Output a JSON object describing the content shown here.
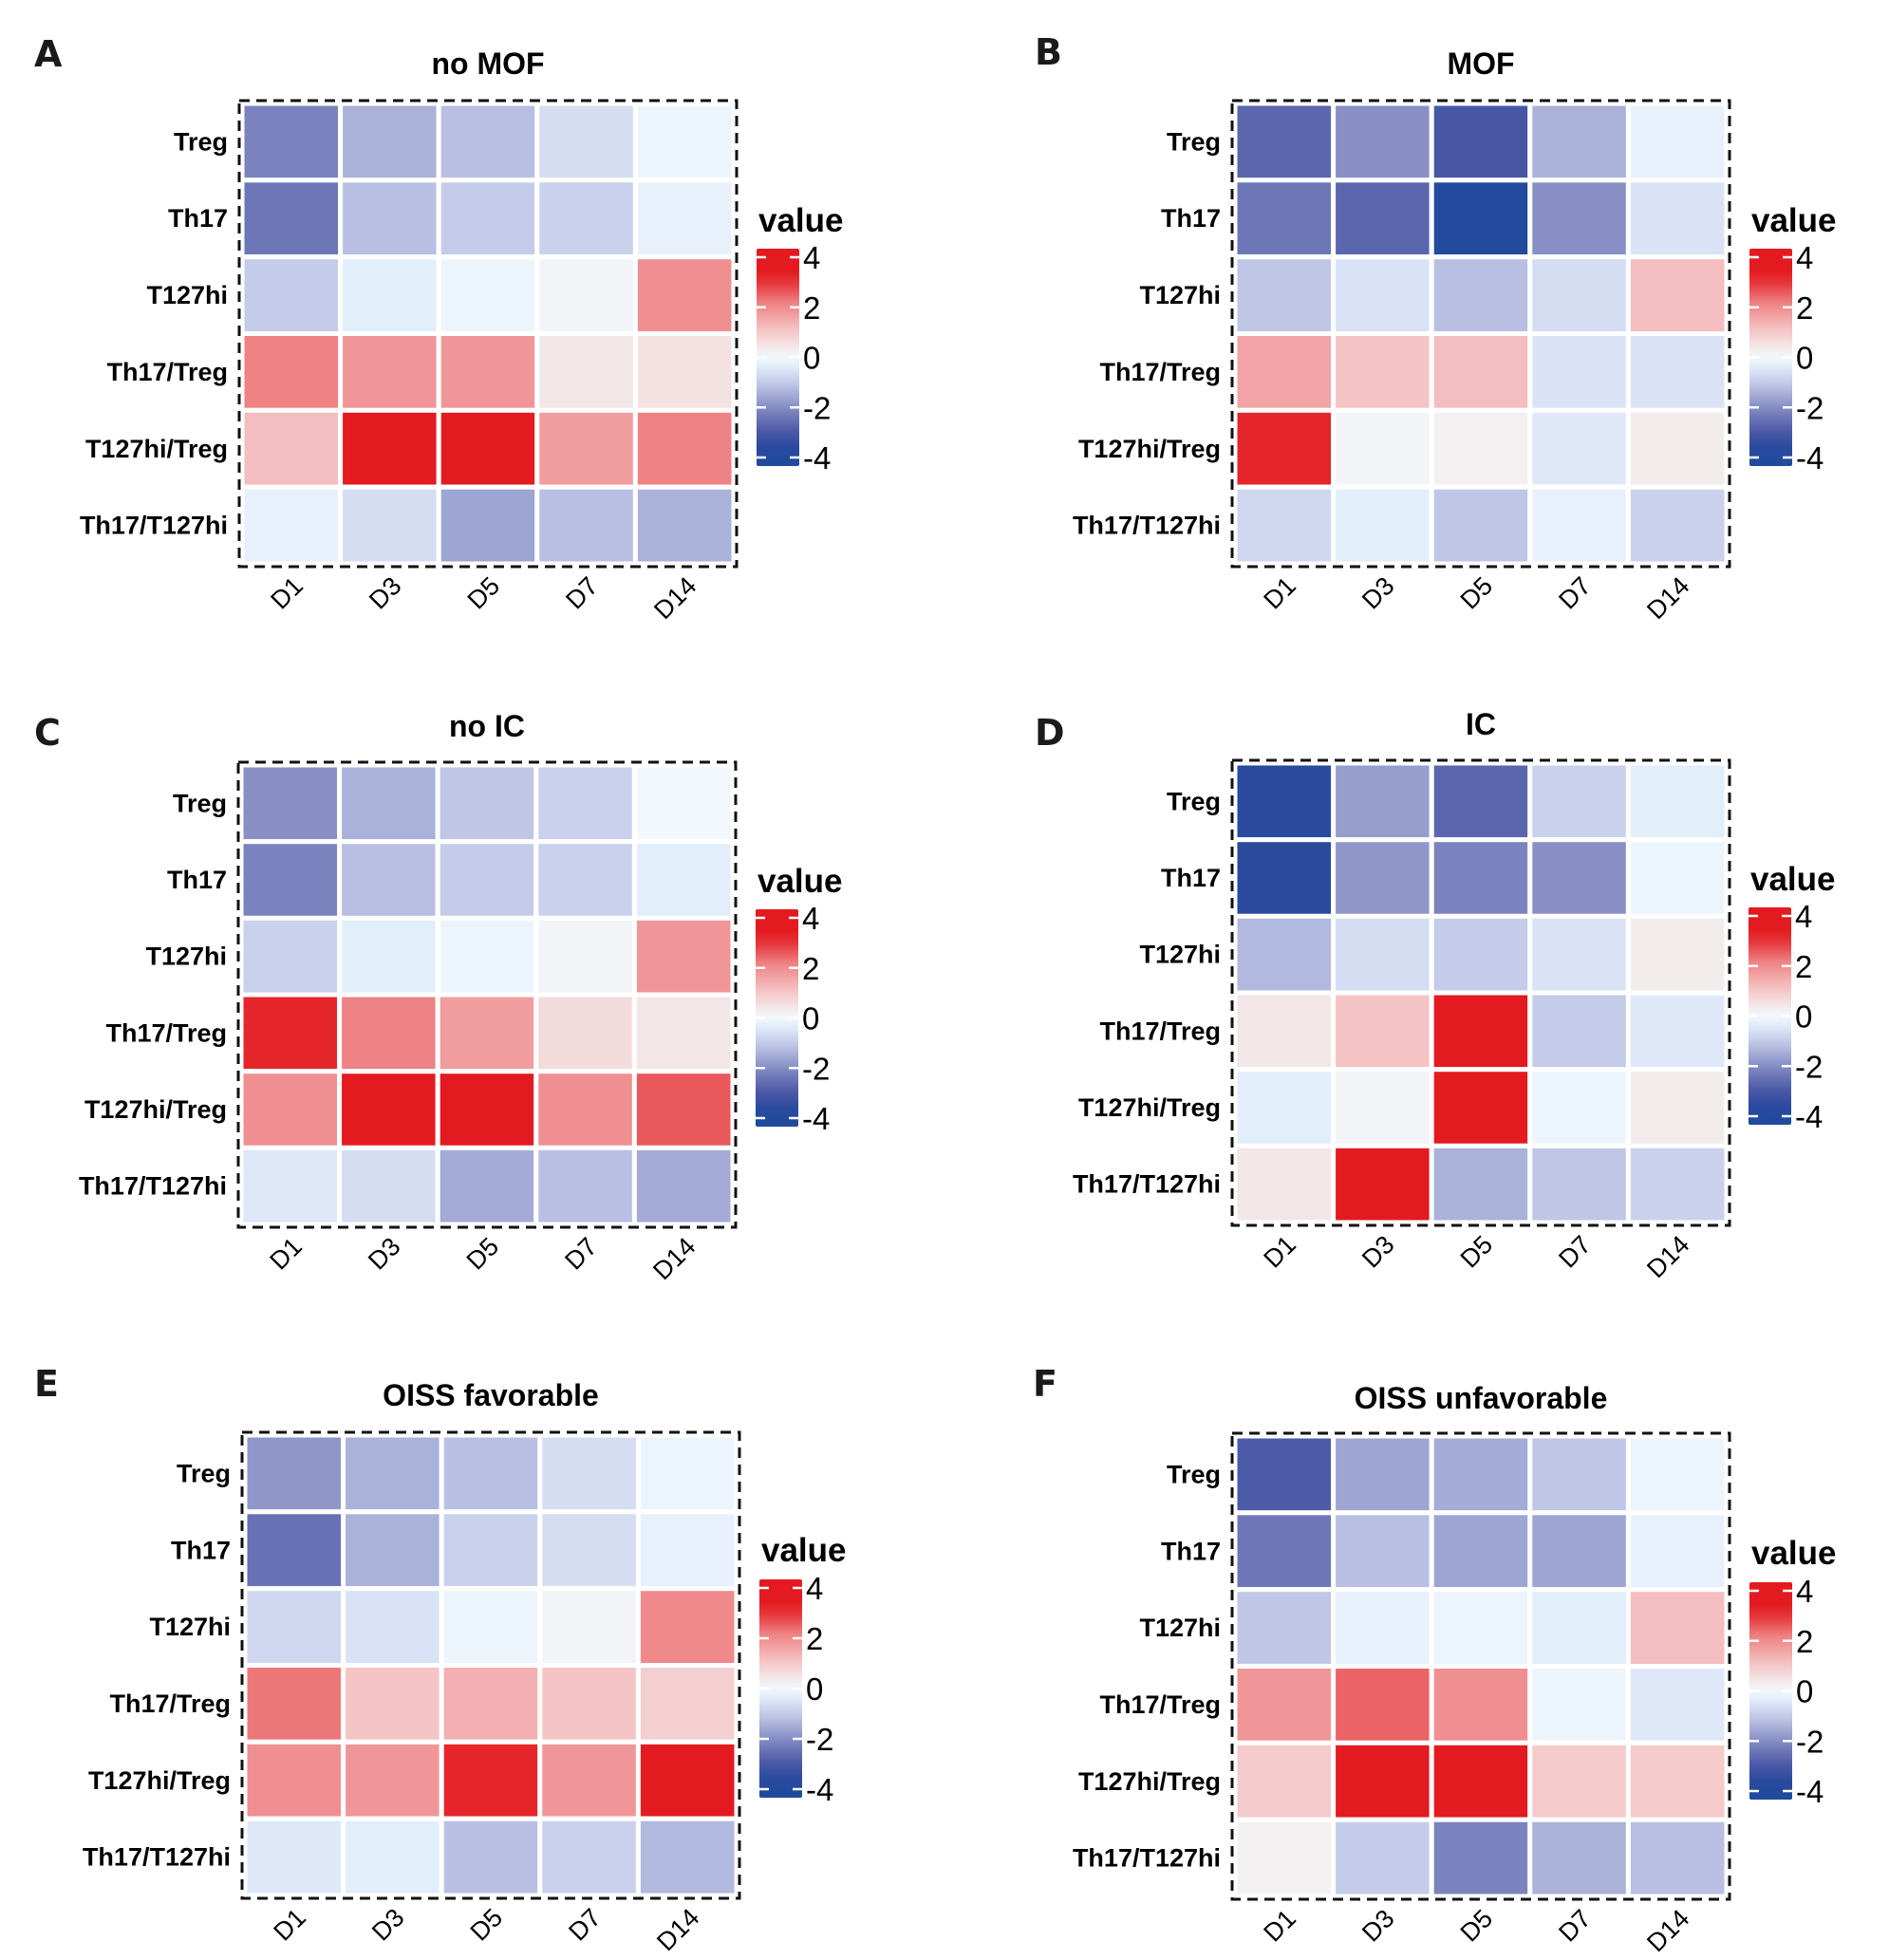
{
  "figure": {
    "colorscale": {
      "title": "value",
      "ticks": [
        4,
        2,
        0,
        -2,
        -4
      ],
      "range": [
        -4,
        4
      ],
      "stops": [
        {
          "v": -4,
          "color": "#1f4a9c"
        },
        {
          "v": -3.3,
          "color": "#2a4a9e"
        },
        {
          "v": -2.7,
          "color": "#4d5aa8"
        },
        {
          "v": -2,
          "color": "#7a83be"
        },
        {
          "v": -1,
          "color": "#bfc6e6"
        },
        {
          "v": -0.3,
          "color": "#e3eefb"
        },
        {
          "v": 0,
          "color": "#f2f8fc"
        },
        {
          "v": 0.3,
          "color": "#f3ecec"
        },
        {
          "v": 1,
          "color": "#f5c4c5"
        },
        {
          "v": 2,
          "color": "#ee8284"
        },
        {
          "v": 2.7,
          "color": "#e6393d"
        },
        {
          "v": 3.2,
          "color": "#e31a1f"
        },
        {
          "v": 4,
          "color": "#e31a1f"
        }
      ]
    }
  },
  "chart_data": [
    {
      "type": "heatmap",
      "panel": "A",
      "title": "no MOF",
      "rows": [
        "Treg",
        "Th17",
        "T127hi",
        "Th17/Treg",
        "T127hi/Treg",
        "Th17/T127hi"
      ],
      "columns": [
        "D1",
        "D3",
        "D5",
        "D7",
        "D14"
      ],
      "values": [
        [
          -2.0,
          -1.3,
          -1.1,
          -0.6,
          -0.1
        ],
        [
          -2.2,
          -1.1,
          -0.9,
          -0.8,
          -0.2
        ],
        [
          -0.9,
          -0.3,
          -0.1,
          0.1,
          1.8
        ],
        [
          2.0,
          1.7,
          1.7,
          0.4,
          0.5
        ],
        [
          1.1,
          3.2,
          3.4,
          1.6,
          2.0
        ],
        [
          -0.2,
          -0.6,
          -1.5,
          -1.1,
          -1.3
        ]
      ],
      "legend_title": "value",
      "legend_ticks": [
        "4",
        "2",
        "0",
        "-2",
        "-4"
      ],
      "zlim": [
        -4,
        4
      ]
    },
    {
      "type": "heatmap",
      "panel": "B",
      "title": "MOF",
      "rows": [
        "Treg",
        "Th17",
        "T127hi",
        "Th17/Treg",
        "T127hi/Treg",
        "Th17/T127hi"
      ],
      "columns": [
        "D1",
        "D3",
        "D5",
        "D7",
        "D14"
      ],
      "values": [
        [
          -2.5,
          -1.8,
          -2.8,
          -1.3,
          -0.2
        ],
        [
          -2.2,
          -2.5,
          -3.8,
          -1.8,
          -0.5
        ],
        [
          -1.0,
          -0.5,
          -1.1,
          -0.6,
          1.1
        ],
        [
          1.5,
          1.0,
          1.1,
          -0.5,
          -0.5
        ],
        [
          3.0,
          0.1,
          0.2,
          -0.4,
          0.3
        ],
        [
          -0.7,
          -0.3,
          -1.0,
          -0.2,
          -0.8
        ]
      ],
      "legend_title": "value",
      "legend_ticks": [
        "4",
        "2",
        "0",
        "-2",
        "-4"
      ],
      "zlim": [
        -4,
        4
      ]
    },
    {
      "type": "heatmap",
      "panel": "C",
      "title": "no IC",
      "rows": [
        "Treg",
        "Th17",
        "T127hi",
        "Th17/Treg",
        "T127hi/Treg",
        "Th17/T127hi"
      ],
      "columns": [
        "D1",
        "D3",
        "D5",
        "D7",
        "D14"
      ],
      "values": [
        [
          -1.8,
          -1.3,
          -1.0,
          -0.8,
          0.0
        ],
        [
          -2.0,
          -1.1,
          -0.9,
          -0.8,
          -0.3
        ],
        [
          -0.8,
          -0.3,
          -0.1,
          0.1,
          1.7
        ],
        [
          3.0,
          2.0,
          1.6,
          0.6,
          0.4
        ],
        [
          1.8,
          4.0,
          3.3,
          1.8,
          2.4
        ],
        [
          -0.4,
          -0.6,
          -1.4,
          -1.1,
          -1.4
        ]
      ],
      "legend_title": "value",
      "legend_ticks": [
        "4",
        "2",
        "0",
        "-2",
        "-4"
      ],
      "zlim": [
        -4,
        4
      ]
    },
    {
      "type": "heatmap",
      "panel": "D",
      "title": "IC",
      "rows": [
        "Treg",
        "Th17",
        "T127hi",
        "Th17/Treg",
        "T127hi/Treg",
        "Th17/T127hi"
      ],
      "columns": [
        "D1",
        "D3",
        "D5",
        "D7",
        "D14"
      ],
      "values": [
        [
          -3.3,
          -1.6,
          -2.5,
          -0.8,
          -0.3
        ],
        [
          -3.3,
          -1.7,
          -2.0,
          -1.8,
          -0.1
        ],
        [
          -1.2,
          -0.6,
          -0.9,
          -0.5,
          0.3
        ],
        [
          0.4,
          1.0,
          4.0,
          -0.9,
          -0.4
        ],
        [
          -0.3,
          0.1,
          4.0,
          -0.1,
          0.3
        ],
        [
          0.4,
          4.0,
          -1.3,
          -1.0,
          -0.8
        ]
      ],
      "legend_title": "value",
      "legend_ticks": [
        "4",
        "2",
        "0",
        "-2",
        "-4"
      ],
      "zlim": [
        -4,
        4
      ]
    },
    {
      "type": "heatmap",
      "panel": "E",
      "title": "OISS favorable",
      "rows": [
        "Treg",
        "Th17",
        "T127hi",
        "Th17/Treg",
        "T127hi/Treg",
        "Th17/T127hi"
      ],
      "columns": [
        "D1",
        "D3",
        "D5",
        "D7",
        "D14"
      ],
      "values": [
        [
          -1.7,
          -1.3,
          -1.1,
          -0.6,
          -0.1
        ],
        [
          -2.3,
          -1.3,
          -0.8,
          -0.6,
          -0.2
        ],
        [
          -0.7,
          -0.5,
          -0.1,
          0.1,
          1.9
        ],
        [
          2.1,
          1.0,
          1.3,
          1.0,
          0.8
        ],
        [
          1.8,
          1.7,
          3.0,
          1.7,
          3.8
        ],
        [
          -0.4,
          -0.3,
          -1.1,
          -0.8,
          -1.2
        ]
      ],
      "legend_title": "value",
      "legend_ticks": [
        "4",
        "2",
        "0",
        "-2",
        "-4"
      ],
      "zlim": [
        -4,
        4
      ]
    },
    {
      "type": "heatmap",
      "panel": "F",
      "title": "OISS unfavorable",
      "rows": [
        "Treg",
        "Th17",
        "T127hi",
        "Th17/Treg",
        "T127hi/Treg",
        "Th17/T127hi"
      ],
      "columns": [
        "D1",
        "D3",
        "D5",
        "D7",
        "D14"
      ],
      "values": [
        [
          -2.7,
          -1.5,
          -1.4,
          -1.0,
          -0.1
        ],
        [
          -2.2,
          -1.1,
          -1.5,
          -1.5,
          -0.2
        ],
        [
          -1.0,
          -0.2,
          -0.1,
          -0.3,
          1.1
        ],
        [
          1.7,
          2.3,
          1.8,
          -0.1,
          -0.4
        ],
        [
          0.9,
          4.0,
          3.2,
          0.9,
          0.9
        ],
        [
          0.2,
          -0.9,
          -2.0,
          -1.3,
          -1.1
        ]
      ],
      "legend_title": "value",
      "legend_ticks": [
        "4",
        "2",
        "0",
        "-2",
        "-4"
      ],
      "zlim": [
        -4,
        4
      ]
    }
  ]
}
